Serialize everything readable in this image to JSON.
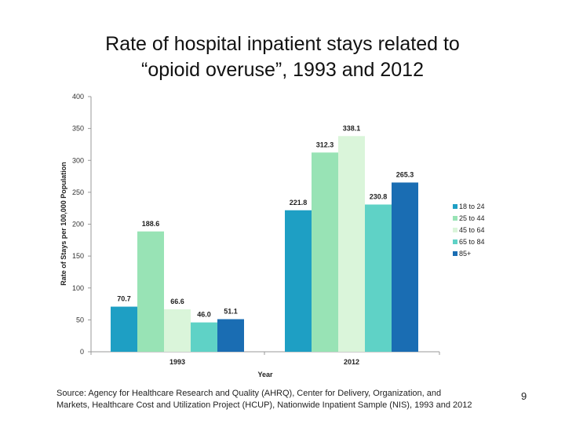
{
  "slide": {
    "title_line1": "Rate of hospital inpatient stays related to",
    "title_line2": "“opioid overuse”, 1993 and 2012",
    "source_line1": "Source: Agency for Healthcare Research and Quality (AHRQ), Center for Delivery, Organization, and",
    "source_line2": "Markets, Healthcare Cost and Utilization Project (HCUP), Nationwide Inpatient Sample (NIS), 1993 and 2012",
    "page_number": "9"
  },
  "chart_data": {
    "type": "bar",
    "title": "Rate of hospital inpatient stays related to “opioid overuse”, 1993 and 2012",
    "xlabel": "Year",
    "ylabel": "Rate of Stays per 100,000  Population",
    "ylim": [
      0,
      400
    ],
    "yticks": [
      0,
      50,
      100,
      150,
      200,
      250,
      300,
      350,
      400
    ],
    "grid": false,
    "legend_position": "right",
    "categories": [
      "1993",
      "2012"
    ],
    "series": [
      {
        "name": "18 to 24",
        "color": "#1e9fc4",
        "values": [
          70.7,
          221.8
        ],
        "labels": [
          "70.7",
          "221.8"
        ]
      },
      {
        "name": "25 to 44",
        "color": "#98e3b5",
        "values": [
          188.6,
          312.3
        ],
        "labels": [
          "188.6",
          "312.3"
        ]
      },
      {
        "name": "45 to 64",
        "color": "#daf5da",
        "values": [
          66.6,
          338.1
        ],
        "labels": [
          "66.6",
          "338.1"
        ]
      },
      {
        "name": "65 to 84",
        "color": "#5fd2c6",
        "values": [
          46.0,
          230.8
        ],
        "labels": [
          "46.0",
          "230.8"
        ]
      },
      {
        "name": "85+",
        "color": "#1a6db3",
        "values": [
          51.1,
          265.3
        ],
        "labels": [
          "51.1",
          "265.3"
        ]
      }
    ]
  }
}
